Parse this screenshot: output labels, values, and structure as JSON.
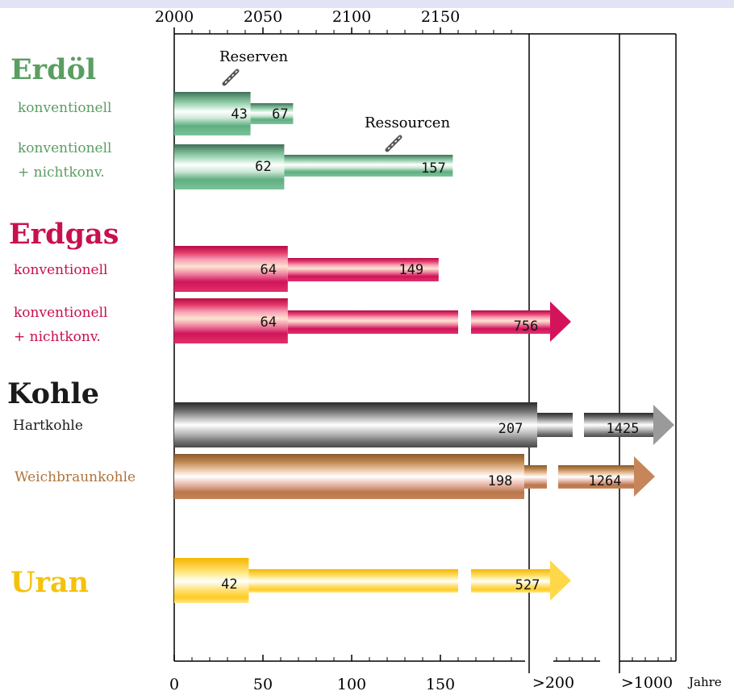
{
  "chart_data": {
    "type": "bar",
    "top_axis": {
      "ticks": [
        "2000",
        "2050",
        "2100",
        "2150"
      ]
    },
    "bottom_axis": {
      "ticks": [
        "0",
        "50",
        "100",
        "150",
        ">200",
        ">1000"
      ],
      "unit": "Jahre"
    },
    "annotations": {
      "reserves": "Reserven",
      "resources": "Ressourcen"
    },
    "groups": [
      {
        "name": "Erdöl",
        "color": "#5a9e62",
        "items": [
          {
            "label": "konventionell",
            "reserves": 43,
            "resources": 67
          },
          {
            "label": "konventionell\n+ nichtkonv.",
            "reserves": 62,
            "resources": 157
          }
        ]
      },
      {
        "name": "Erdgas",
        "color": "#c8104e",
        "items": [
          {
            "label": "konventionell",
            "reserves": 64,
            "resources": 149
          },
          {
            "label": "konventionell\n+ nichtkonv.",
            "reserves": 64,
            "resources": 756
          }
        ]
      },
      {
        "name": "Kohle",
        "color": "#1a1a1a",
        "items": [
          {
            "label": "Hartkohle",
            "reserves": 207,
            "resources": 1425
          },
          {
            "label": "Weichbraunkohle",
            "reserves": 198,
            "resources": 1264
          }
        ]
      },
      {
        "name": "Uran",
        "color": "#f5c20a",
        "items": [
          {
            "label": "",
            "reserves": 42,
            "resources": 527
          }
        ]
      }
    ]
  },
  "colors": {
    "erdoel_label": "#5a9e62",
    "erdgas_label": "#c8104e",
    "kohle_label": "#1a1a1a",
    "hartkohle_label": "#1a1a1a",
    "weichbraunkohle_label": "#b0743c",
    "uran_label": "#f5c20a"
  }
}
